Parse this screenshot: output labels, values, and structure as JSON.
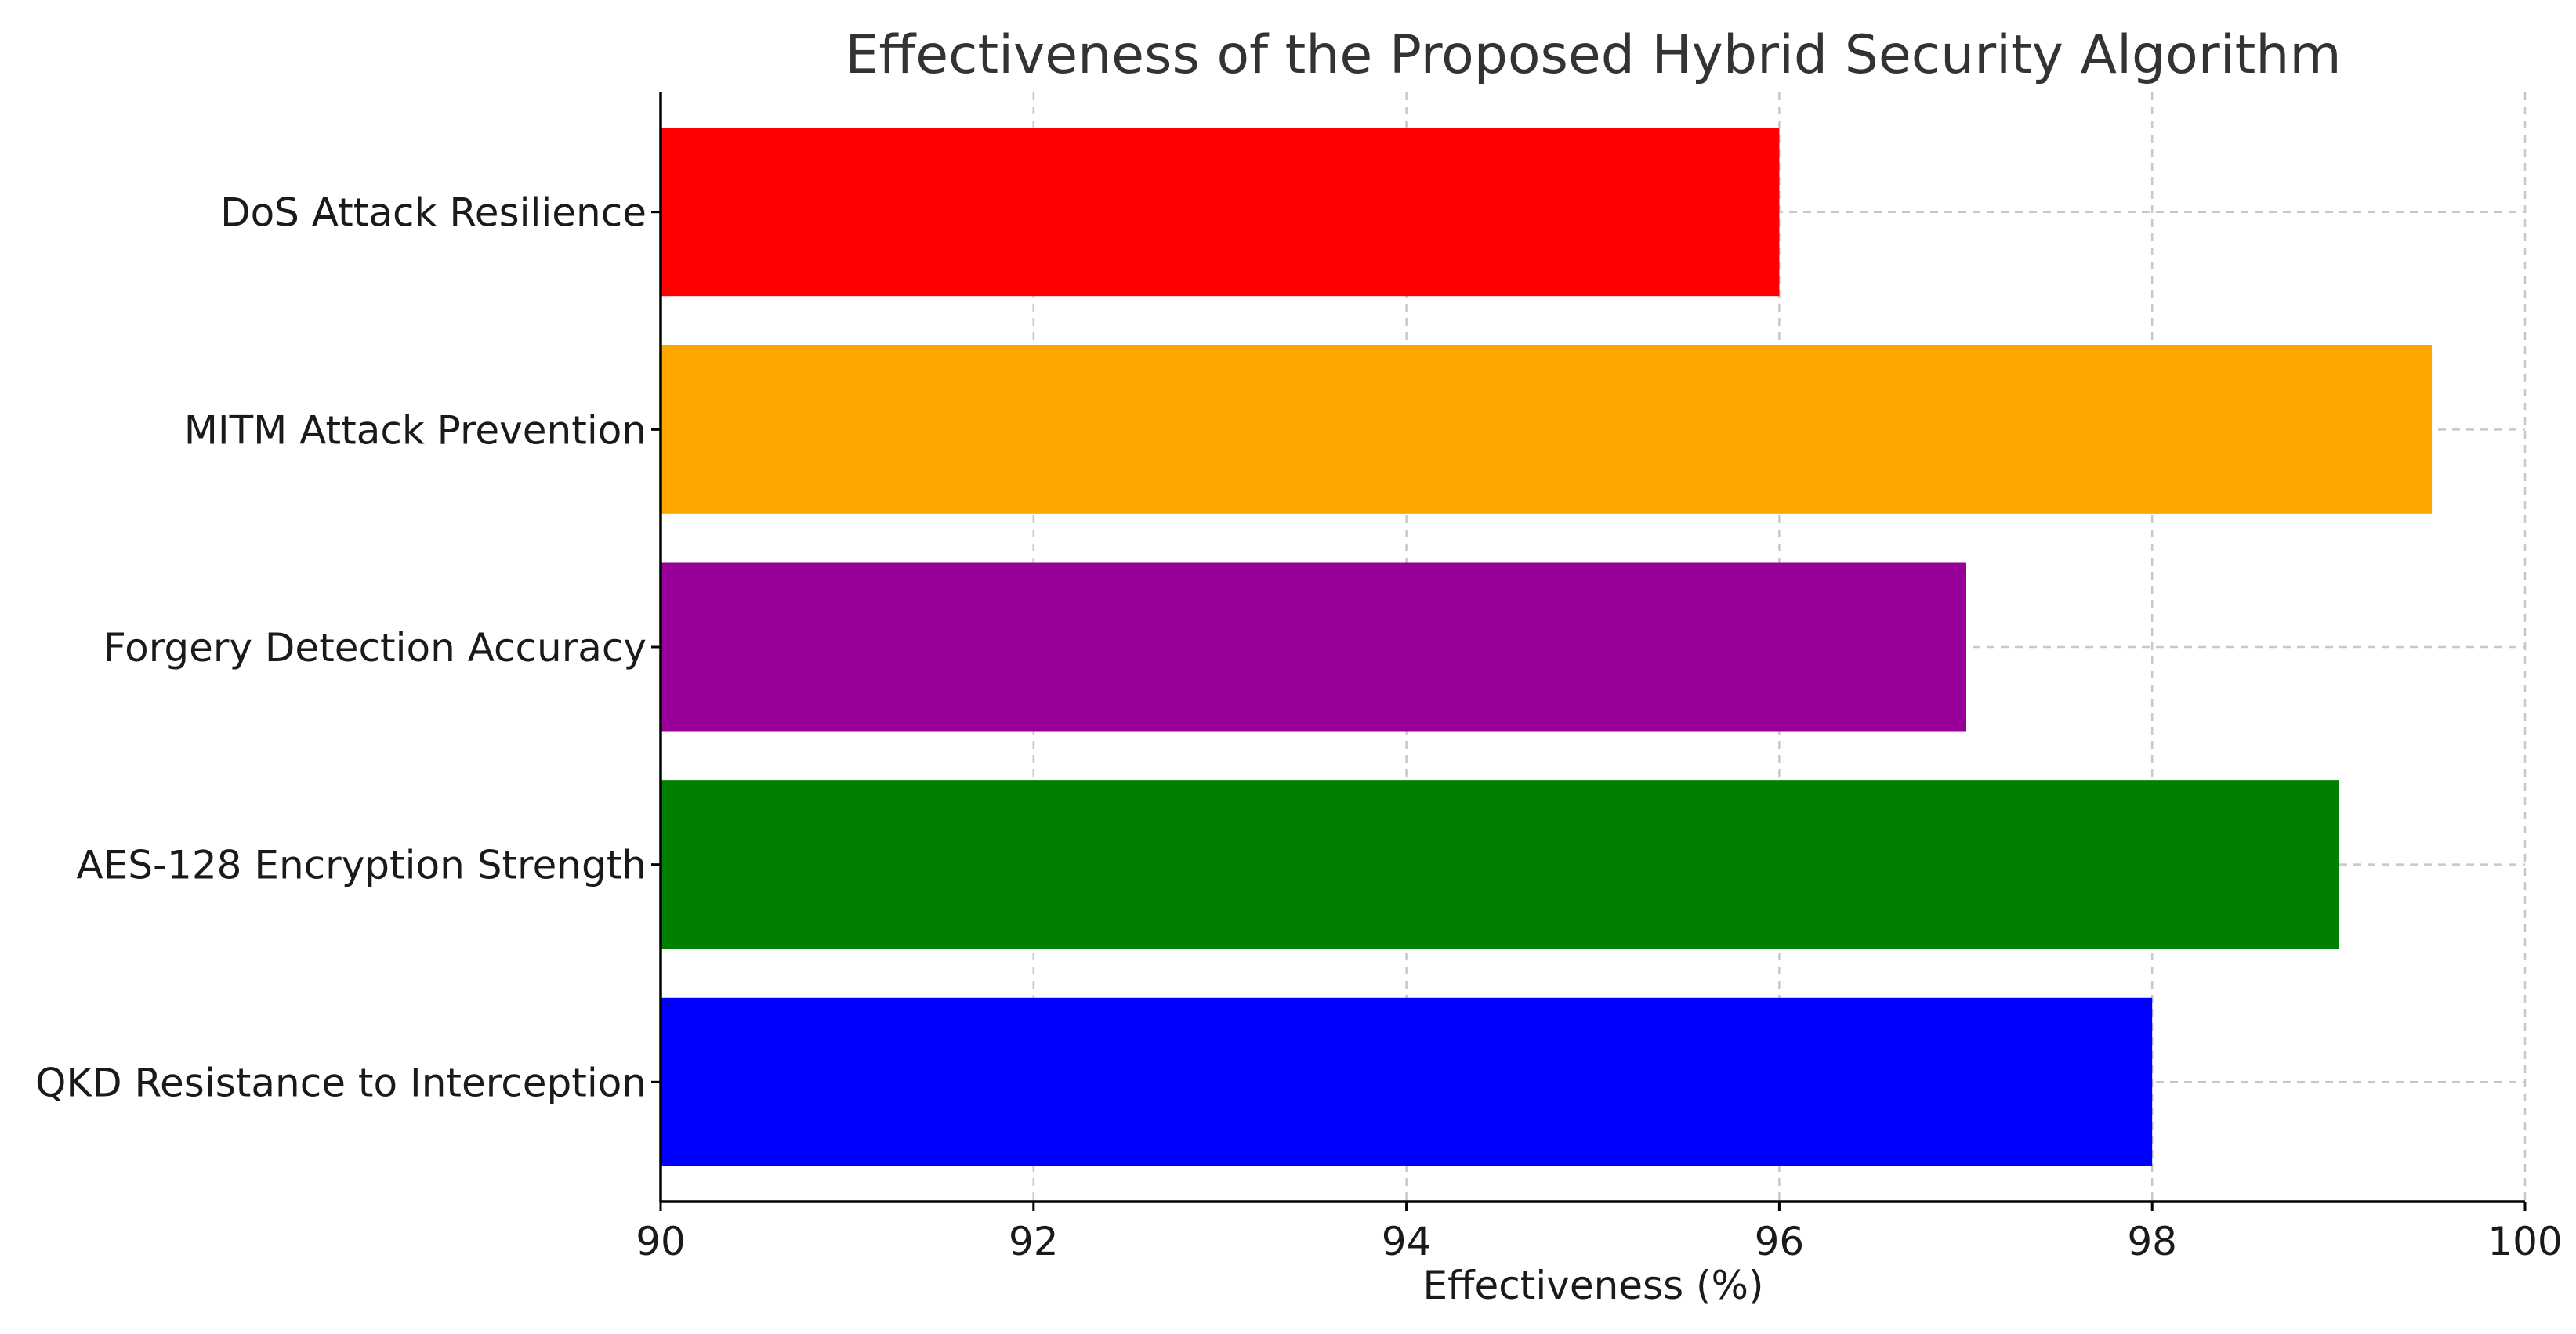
{
  "chart_data": {
    "type": "bar",
    "orientation": "horizontal",
    "title": "Effectiveness of the Proposed Hybrid Security Algorithm",
    "xlabel": "Effectiveness (%)",
    "ylabel": "",
    "xlim": [
      90,
      100
    ],
    "xticks": [
      90,
      92,
      94,
      96,
      98,
      100
    ],
    "grid": true,
    "categories": [
      "QKD Resistance to Interception",
      "AES-128 Encryption Strength",
      "Forgery Detection Accuracy",
      "MITM Attack Prevention",
      "DoS Attack Resilience"
    ],
    "values": [
      98,
      99,
      97,
      99.5,
      96
    ],
    "colors": [
      "#0000ff",
      "#008000",
      "#990099",
      "#ffa500",
      "#ff0000"
    ]
  }
}
